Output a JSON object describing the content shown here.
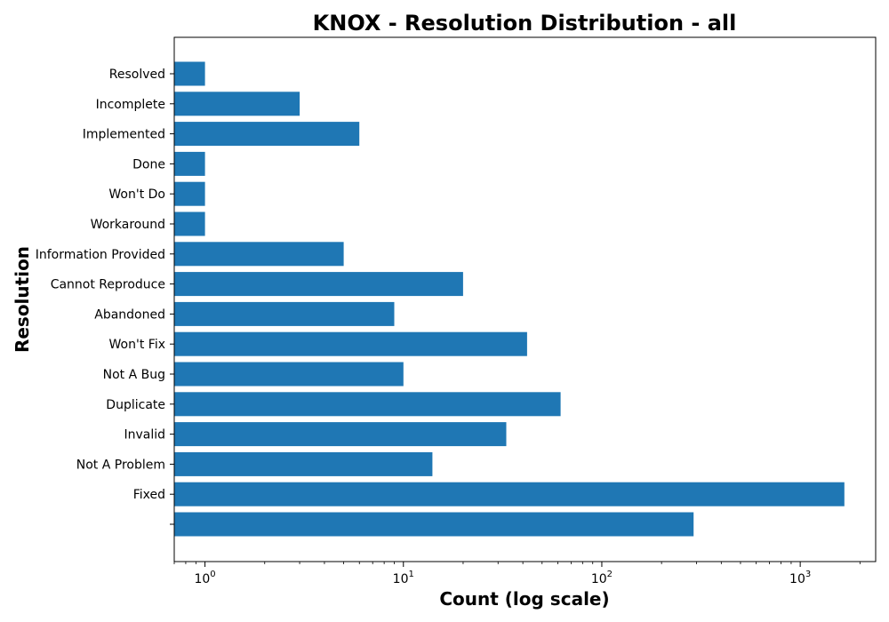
{
  "chart_data": {
    "type": "bar",
    "orientation": "horizontal",
    "title": "KNOX - Resolution Distribution - all",
    "xlabel": "Count (log scale)",
    "ylabel": "Resolution",
    "x_scale": "log",
    "xlim": [
      0.7,
      2400
    ],
    "x_ticks": [
      {
        "base": "10",
        "exp": "0",
        "value": 1
      },
      {
        "base": "10",
        "exp": "1",
        "value": 10
      },
      {
        "base": "10",
        "exp": "2",
        "value": 100
      },
      {
        "base": "10",
        "exp": "3",
        "value": 1000
      }
    ],
    "grid": false,
    "bar_color": "#1f77b4",
    "categories": [
      "",
      "Fixed",
      "Not A Problem",
      "Invalid",
      "Duplicate",
      "Not A Bug",
      "Won't Fix",
      "Abandoned",
      "Cannot Reproduce",
      "Information Provided",
      "Workaround",
      "Won't Do",
      "Done",
      "Implemented",
      "Incomplete",
      "Resolved"
    ],
    "values": [
      290,
      1670,
      14,
      33,
      62,
      10,
      42,
      9,
      20,
      5,
      1,
      1,
      1,
      6,
      3,
      1
    ]
  }
}
